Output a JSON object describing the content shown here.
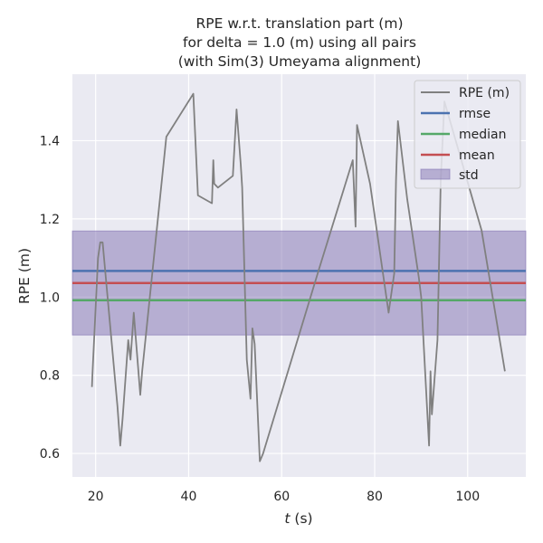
{
  "chart_data": {
    "type": "line",
    "title": [
      "RPE w.r.t. translation part (m)",
      "for delta = 1.0 (m) using all pairs",
      "(with Sim(3) Umeyama alignment)"
    ],
    "xlabel_var": "t",
    "xlabel_unit": " (s)",
    "ylabel": "RPE (m)",
    "xlim": [
      15,
      112.5
    ],
    "ylim": [
      0.54,
      1.57
    ],
    "xticks": [
      20,
      40,
      60,
      80,
      100
    ],
    "yticks": [
      0.6,
      0.8,
      1.0,
      1.2,
      1.4
    ],
    "xtick_labels": [
      "20",
      "40",
      "60",
      "80",
      "100"
    ],
    "ytick_labels": [
      "0.6",
      "0.8",
      "1.0",
      "1.2",
      "1.4"
    ],
    "grid": true,
    "legend_position": "top-right",
    "series": [
      {
        "name": "RPE (m)",
        "color": "#808080",
        "x": [
          19.2,
          19.3,
          20.5,
          21.0,
          21.5,
          24.7,
          25.3,
          25.8,
          27.0,
          27.5,
          28.2,
          29.6,
          30.0,
          35.2,
          41.0,
          42.0,
          45.0,
          45.3,
          45.5,
          46.3,
          49.5,
          50.3,
          51.2,
          51.5,
          52.5,
          53.3,
          53.7,
          54.2,
          55.3,
          56.0,
          68.0,
          75.3,
          75.9,
          76.2,
          79.0,
          83.0,
          84.2,
          84.6,
          85.0,
          87.0,
          89.5,
          90.0,
          91.7,
          92.0,
          92.3,
          93.5,
          94.2,
          95.0,
          103.0,
          108.0
        ],
        "y": [
          0.77,
          0.8,
          1.1,
          1.14,
          1.14,
          0.72,
          0.62,
          0.69,
          0.89,
          0.84,
          0.96,
          0.75,
          0.81,
          1.41,
          1.52,
          1.26,
          1.24,
          1.35,
          1.29,
          1.28,
          1.31,
          1.48,
          1.34,
          1.28,
          0.84,
          0.74,
          0.92,
          0.88,
          0.58,
          0.6,
          1.07,
          1.35,
          1.18,
          1.44,
          1.29,
          0.96,
          1.06,
          1.3,
          1.45,
          1.25,
          1.05,
          1.0,
          0.62,
          0.81,
          0.7,
          0.89,
          1.3,
          1.5,
          1.17,
          0.81
        ]
      }
    ],
    "stats": [
      {
        "name": "rmse",
        "value": 1.067,
        "color": "#4c72b0"
      },
      {
        "name": "median",
        "value": 0.992,
        "color": "#55a868"
      },
      {
        "name": "mean",
        "value": 1.036,
        "color": "#c44e52"
      }
    ],
    "std_band": {
      "name": "std",
      "lower": 0.903,
      "upper": 1.169,
      "color": "#8172b2"
    },
    "legend": [
      "RPE (m)",
      "rmse",
      "median",
      "mean",
      "std"
    ]
  }
}
